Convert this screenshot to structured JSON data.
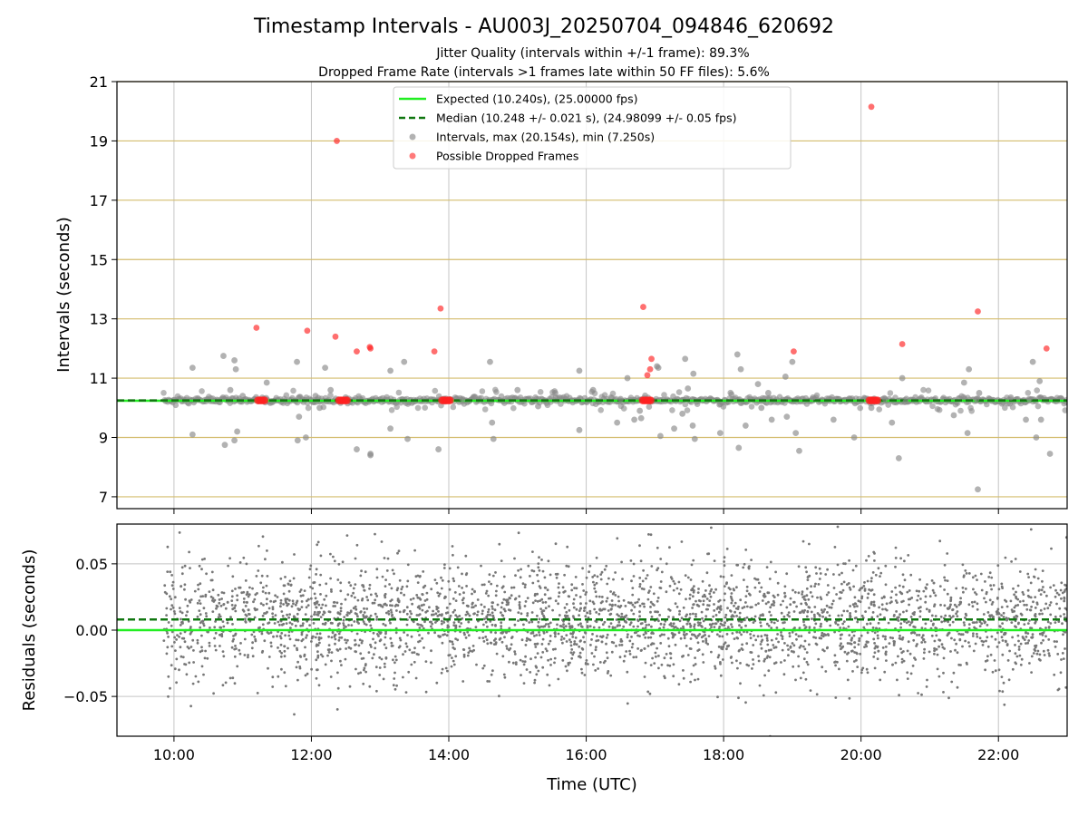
{
  "chart_data": [
    {
      "type": "scatter",
      "title": "Timestamp Intervals - AU003J_20250704_094846_620692",
      "subtitle_lines": [
        "Jitter Quality (intervals within +/-1 frame): 89.3%",
        "Dropped Frame Rate (intervals >1 frames late within 50 FF files): 5.6%"
      ],
      "xlabel": "",
      "ylabel": "Intervals (seconds)",
      "x_unit": "hours UTC",
      "xlim": [
        9.17,
        23.0
      ],
      "ylim": [
        6.6,
        21.0
      ],
      "yticks": [
        7,
        9,
        11,
        13,
        15,
        17,
        19,
        21
      ],
      "ytick_labels": [
        "7",
        "9",
        "11",
        "13",
        "15",
        "17",
        "19",
        "21"
      ],
      "grid": true,
      "legend_position": "top-center",
      "legend": [
        "Expected (10.240s), (25.00000 fps)",
        "Median (10.248 +/- 0.021 s), (24.98099 +/- 0.05 fps)",
        "Intervals, max (20.154s), min (7.250s)",
        "Possible Dropped Frames"
      ],
      "expected_interval": 10.24,
      "median_interval": 10.248,
      "series_colors": {
        "expected": "#22ee22",
        "median": "#117711",
        "intervals": "#888888",
        "dropped": "#ff2222",
        "ygrid": "#d4bd6e",
        "xgrid": "#c4c4c4"
      },
      "series": [
        {
          "kind": "dropped",
          "x": [
            11.2,
            11.94,
            12.35,
            12.37,
            12.66,
            12.86,
            12.85,
            13.79,
            13.88,
            16.83,
            16.89,
            16.93,
            16.95,
            20.15,
            19.02,
            20.6,
            21.7,
            22.7
          ],
          "y": [
            12.7,
            12.6,
            12.4,
            19.0,
            11.9,
            12.0,
            12.05,
            11.9,
            13.35,
            13.4,
            11.1,
            11.3,
            11.65,
            20.15,
            11.9,
            12.15,
            13.25,
            12.0
          ]
        },
        {
          "kind": "dropped-cluster",
          "x": [
            11.22,
            11.24,
            11.26,
            11.28,
            11.3,
            11.32,
            12.4,
            12.42,
            12.44,
            12.46,
            12.48,
            12.5,
            12.52,
            13.9,
            13.92,
            13.94,
            13.96,
            13.98,
            14.0,
            14.02,
            16.82,
            16.84,
            16.86,
            16.88,
            16.9,
            16.92,
            16.94,
            20.12,
            20.14,
            20.16,
            20.18,
            20.2,
            20.22,
            20.24
          ],
          "y": [
            10.25,
            10.25,
            10.25,
            10.25,
            10.25,
            10.25,
            10.25,
            10.25,
            10.25,
            10.25,
            10.25,
            10.25,
            10.25,
            10.25,
            10.25,
            10.25,
            10.25,
            10.25,
            10.25,
            10.25,
            10.25,
            10.25,
            10.25,
            10.25,
            10.25,
            10.25,
            10.25,
            10.25,
            10.25,
            10.25,
            10.25,
            10.25,
            10.25,
            10.25
          ]
        },
        {
          "kind": "intervals-outliers",
          "x": [
            10.27,
            10.27,
            10.72,
            10.74,
            10.82,
            10.88,
            10.9,
            10.92,
            11.0,
            10.88,
            11.35,
            11.79,
            11.8,
            11.82,
            11.92,
            12.06,
            12.12,
            12.2,
            12.28,
            12.66,
            12.86,
            12.86,
            13.15,
            13.15,
            13.35,
            13.4,
            13.85,
            14.2,
            14.6,
            14.63,
            14.65,
            15.0,
            15.3,
            15.55,
            15.9,
            15.9,
            16.1,
            16.45,
            16.5,
            16.6,
            16.7,
            16.78,
            16.8,
            17.03,
            17.05,
            17.08,
            17.28,
            17.4,
            17.44,
            17.48,
            17.55,
            17.56,
            17.58,
            17.95,
            18.2,
            18.22,
            18.25,
            18.32,
            18.5,
            18.55,
            18.65,
            18.7,
            18.9,
            18.92,
            19.0,
            19.05,
            19.1,
            19.3,
            19.6,
            19.9,
            20.15,
            20.35,
            20.45,
            20.55,
            20.6,
            20.65,
            21.35,
            21.5,
            21.55,
            21.57,
            21.68,
            21.7,
            21.72,
            22.18,
            22.4,
            22.45,
            22.5,
            22.55,
            22.6,
            22.62,
            22.75
          ],
          "y": [
            11.35,
            9.1,
            11.75,
            8.75,
            10.6,
            11.6,
            11.3,
            9.2,
            10.4,
            8.9,
            10.85,
            11.55,
            8.9,
            9.7,
            9.0,
            10.4,
            10.0,
            11.35,
            10.6,
            8.6,
            8.45,
            8.4,
            11.25,
            9.3,
            11.55,
            8.95,
            8.6,
            10.3,
            11.55,
            9.5,
            8.95,
            10.6,
            10.05,
            10.5,
            11.25,
            9.25,
            10.6,
            9.5,
            10.3,
            11.0,
            9.6,
            9.9,
            9.65,
            11.4,
            11.35,
            9.05,
            9.3,
            9.8,
            11.65,
            10.65,
            9.4,
            11.15,
            8.95,
            9.15,
            11.8,
            8.65,
            11.3,
            9.4,
            10.8,
            10.0,
            10.5,
            9.6,
            11.05,
            9.7,
            11.55,
            9.15,
            8.55,
            10.35,
            9.6,
            9.0,
            10.0,
            10.3,
            9.5,
            8.3,
            11.0,
            10.2,
            9.75,
            10.85,
            9.15,
            11.3,
            10.3,
            7.25,
            10.5,
            10.35,
            9.6,
            10.3,
            11.55,
            9.0,
            10.9,
            9.6,
            8.45
          ]
        }
      ],
      "base_samples": {
        "x_start": 9.85,
        "x_end": 23.0,
        "count": 900,
        "y_center": 10.25,
        "y_spread": 0.1,
        "near_spread": 0.6,
        "near_fraction": 0.12
      }
    },
    {
      "type": "scatter",
      "title": "",
      "xlabel": "Time (UTC)",
      "ylabel": "Residuals (seconds)",
      "xlim": [
        9.17,
        23.0
      ],
      "ylim": [
        -0.08,
        0.08
      ],
      "yticks": [
        -0.05,
        0.0,
        0.05
      ],
      "ytick_labels": [
        "−0.05",
        "0.00",
        "0.05"
      ],
      "xticks": [
        10,
        12,
        14,
        16,
        18,
        20,
        22
      ],
      "xtick_labels": [
        "10:00",
        "12:00",
        "14:00",
        "16:00",
        "18:00",
        "20:00",
        "22:00"
      ],
      "grid": true,
      "expected_residual": 0.0,
      "median_residual": 0.008,
      "residual_samples": {
        "x_start": 9.85,
        "x_end": 23.0,
        "count": 3300,
        "mean": 0.008,
        "sd": 0.022,
        "point_color": "#777777"
      }
    }
  ]
}
